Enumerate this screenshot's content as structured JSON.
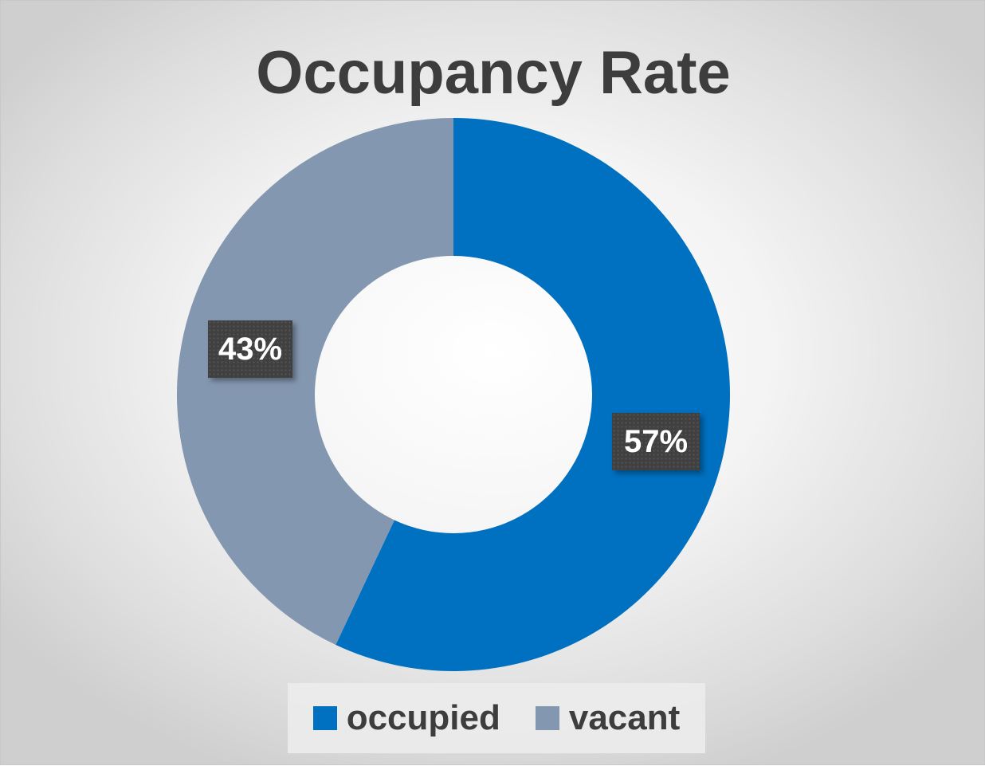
{
  "chart_data": {
    "type": "pie",
    "title": "Occupancy Rate",
    "categories": [
      "occupied",
      "vacant"
    ],
    "values": [
      57,
      43
    ],
    "data_labels": [
      "57%",
      "43%"
    ],
    "colors": [
      "#0070C0",
      "#8497B0"
    ],
    "legend_position": "bottom"
  }
}
